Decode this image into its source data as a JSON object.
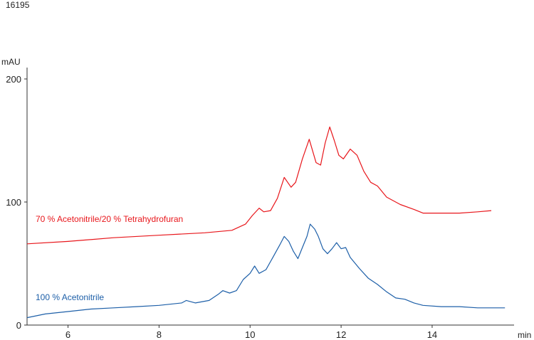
{
  "figure_id": "16195",
  "chart_data": {
    "type": "line",
    "title": "",
    "xlabel": "min",
    "ylabel": "mAU",
    "xlim": [
      5.1,
      15.8
    ],
    "ylim": [
      0,
      205
    ],
    "x_ticks": [
      "6",
      "8",
      "10",
      "12",
      "14"
    ],
    "y_ticks": [
      "0",
      "100",
      "200"
    ],
    "grid": false,
    "series": [
      {
        "name": "70 % Acetonitrile/20 % Tetrahydrofuran",
        "color": "#e8161b",
        "points": [
          [
            5.1,
            66
          ],
          [
            6,
            68
          ],
          [
            7,
            71
          ],
          [
            8,
            73
          ],
          [
            9,
            75
          ],
          [
            9.6,
            77
          ],
          [
            9.9,
            82
          ],
          [
            10.05,
            89
          ],
          [
            10.2,
            95
          ],
          [
            10.3,
            92
          ],
          [
            10.45,
            93
          ],
          [
            10.6,
            103
          ],
          [
            10.75,
            120
          ],
          [
            10.9,
            112
          ],
          [
            11.0,
            116
          ],
          [
            11.15,
            135
          ],
          [
            11.3,
            151
          ],
          [
            11.45,
            132
          ],
          [
            11.55,
            130
          ],
          [
            11.65,
            148
          ],
          [
            11.75,
            161
          ],
          [
            11.85,
            150
          ],
          [
            11.95,
            138
          ],
          [
            12.05,
            135
          ],
          [
            12.2,
            143
          ],
          [
            12.35,
            138
          ],
          [
            12.5,
            125
          ],
          [
            12.65,
            116
          ],
          [
            12.8,
            113
          ],
          [
            13.0,
            104
          ],
          [
            13.3,
            98
          ],
          [
            13.6,
            94
          ],
          [
            13.8,
            91
          ],
          [
            14.2,
            91
          ],
          [
            14.6,
            91
          ],
          [
            15.0,
            92
          ],
          [
            15.3,
            93
          ]
        ]
      },
      {
        "name": "100 % Acetonitrile",
        "color": "#1d5fa8",
        "points": [
          [
            5.1,
            6
          ],
          [
            5.5,
            9
          ],
          [
            6,
            11
          ],
          [
            6.5,
            13
          ],
          [
            7,
            14
          ],
          [
            7.5,
            15
          ],
          [
            8,
            16
          ],
          [
            8.5,
            18
          ],
          [
            8.6,
            20
          ],
          [
            8.8,
            18
          ],
          [
            9.1,
            20
          ],
          [
            9.3,
            25
          ],
          [
            9.4,
            28
          ],
          [
            9.55,
            26
          ],
          [
            9.7,
            28
          ],
          [
            9.85,
            37
          ],
          [
            10.0,
            42
          ],
          [
            10.1,
            48
          ],
          [
            10.2,
            42
          ],
          [
            10.35,
            45
          ],
          [
            10.5,
            55
          ],
          [
            10.65,
            65
          ],
          [
            10.75,
            72
          ],
          [
            10.85,
            68
          ],
          [
            10.95,
            60
          ],
          [
            11.05,
            54
          ],
          [
            11.15,
            63
          ],
          [
            11.25,
            72
          ],
          [
            11.32,
            82
          ],
          [
            11.42,
            78
          ],
          [
            11.5,
            72
          ],
          [
            11.6,
            62
          ],
          [
            11.7,
            58
          ],
          [
            11.8,
            62
          ],
          [
            11.9,
            67
          ],
          [
            12.0,
            62
          ],
          [
            12.1,
            63
          ],
          [
            12.2,
            55
          ],
          [
            12.4,
            46
          ],
          [
            12.6,
            38
          ],
          [
            12.8,
            33
          ],
          [
            13.0,
            27
          ],
          [
            13.2,
            22
          ],
          [
            13.4,
            21
          ],
          [
            13.6,
            18
          ],
          [
            13.8,
            16
          ],
          [
            14.2,
            15
          ],
          [
            14.6,
            15
          ],
          [
            15.0,
            14
          ],
          [
            15.6,
            14
          ]
        ]
      }
    ]
  }
}
